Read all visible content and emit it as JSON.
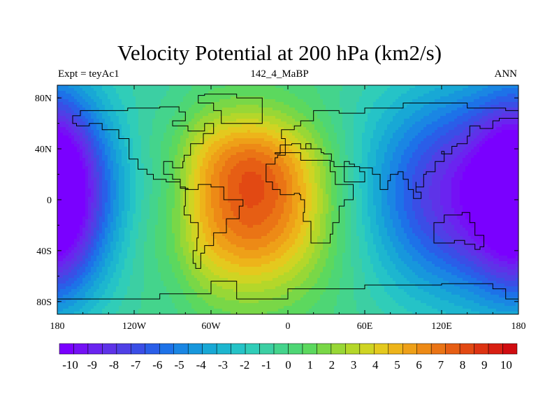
{
  "chart_data": {
    "type": "heatmap",
    "title": "Velocity Potential at 200 hPa (km2/s)",
    "left_label": "Expt = teyAc1",
    "center_label": "142_4_MaBP",
    "right_label": "ANN",
    "x_ticks": [
      {
        "lon": -180,
        "label": "180"
      },
      {
        "lon": -120,
        "label": "120W"
      },
      {
        "lon": -60,
        "label": "60W"
      },
      {
        "lon": 0,
        "label": "0"
      },
      {
        "lon": 60,
        "label": "60E"
      },
      {
        "lon": 120,
        "label": "120E"
      },
      {
        "lon": 180,
        "label": "180"
      }
    ],
    "y_ticks": [
      {
        "lat": 80,
        "label": "80N"
      },
      {
        "lat": 40,
        "label": "40N"
      },
      {
        "lat": 0,
        "label": "0"
      },
      {
        "lat": -40,
        "label": "40S"
      },
      {
        "lat": -80,
        "label": "80S"
      }
    ],
    "xlim": [
      -180,
      180
    ],
    "ylim": [
      -90,
      90
    ],
    "levels_min": -10.5,
    "levels_max": 10.5,
    "level_step": 0.5,
    "colorbar_labels": [
      "-10",
      "-9",
      "-8",
      "-7",
      "-6",
      "-5",
      "-4",
      "-3",
      "-2",
      "-1",
      "0",
      "1",
      "2",
      "3",
      "4",
      "5",
      "6",
      "7",
      "8",
      "9",
      "10"
    ],
    "field_components": [
      {
        "lon": -40,
        "lat": -20,
        "amp": 5.6,
        "sx": 52,
        "sy": 40
      },
      {
        "lon": -30,
        "lat": 28,
        "amp": 3.0,
        "sx": 40,
        "sy": 26
      },
      {
        "lon": -5,
        "lat": 0,
        "amp": 2.0,
        "sx": 35,
        "sy": 45
      },
      {
        "lon": -60,
        "lat": 50,
        "amp": 1.4,
        "sx": 50,
        "sy": 25
      },
      {
        "lon": 150,
        "lat": 5,
        "amp": -9.5,
        "sx": 65,
        "sy": 60
      },
      {
        "lon": -180,
        "lat": 5,
        "amp": -5.8,
        "sx": 22,
        "sy": 55
      },
      {
        "lon": -90,
        "lat": 0,
        "amp": -1.0,
        "sx": 14,
        "sy": 70
      }
    ],
    "colormap": [
      "#7a00ff",
      "#7411f5",
      "#6a24f0",
      "#5e33e8",
      "#4f40e6",
      "#3a4ee6",
      "#2a5ee8",
      "#1d72e8",
      "#1a86e3",
      "#1797dc",
      "#18a8d5",
      "#1db6cf",
      "#25c3c7",
      "#30cdb8",
      "#3ccfa3",
      "#44d48c",
      "#4ed675",
      "#5cd85e",
      "#79d747",
      "#98d736",
      "#b4d72a",
      "#cfd423",
      "#e4c91e",
      "#edb41a",
      "#eea018",
      "#ed8a16",
      "#ea7415",
      "#e65e14",
      "#e24913",
      "#dd3312",
      "#d81f12",
      "#d00c10"
    ]
  }
}
